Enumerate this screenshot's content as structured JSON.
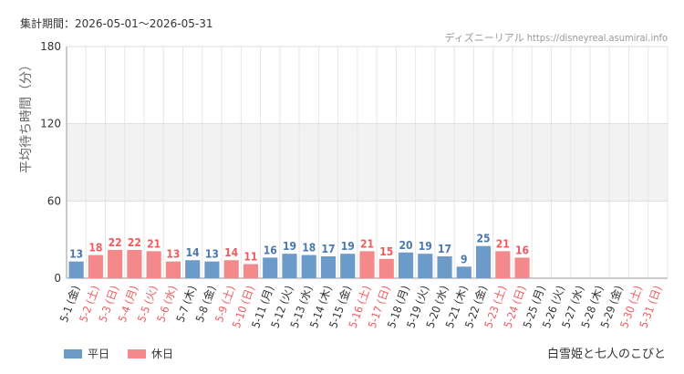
{
  "header": {
    "period": "集計期間：2026-05-01〜2026-05-31",
    "source": "ディズニーリアル https://disneyreal.asumirai.info"
  },
  "footer": {
    "attraction": "白雪姫と七人のこびと"
  },
  "colors": {
    "weekday": "#6d9bc9",
    "holiday": "#f4898c",
    "weekday_text": "#4a78ad",
    "holiday_text": "#ef5a5f",
    "band": "#f2f2f2",
    "grid": "#e6e6e6"
  },
  "chart_data": {
    "type": "bar",
    "ylabel": "平均待ち時間（分）",
    "ylim": [
      0,
      180
    ],
    "yticks": [
      0,
      60,
      120,
      180
    ],
    "shaded_band": [
      60,
      120
    ],
    "legend": [
      {
        "name": "平日",
        "key": "weekday"
      },
      {
        "name": "休日",
        "key": "holiday"
      }
    ],
    "categories": [
      "5-1 (金)",
      "5-2 (土)",
      "5-3 (日)",
      "5-4 (月)",
      "5-5 (火)",
      "5-6 (水)",
      "5-7 (木)",
      "5-8 (金)",
      "5-9 (土)",
      "5-10 (日)",
      "5-11 (月)",
      "5-12 (火)",
      "5-13 (水)",
      "5-14 (木)",
      "5-15 (金)",
      "5-16 (土)",
      "5-17 (日)",
      "5-18 (月)",
      "5-19 (火)",
      "5-20 (水)",
      "5-21 (木)",
      "5-22 (金)",
      "5-23 (土)",
      "5-24 (日)",
      "5-25 (月)",
      "5-26 (火)",
      "5-27 (水)",
      "5-28 (木)",
      "5-29 (金)",
      "5-30 (土)",
      "5-31 (日)"
    ],
    "values": [
      13,
      18,
      22,
      22,
      21,
      13,
      14,
      13,
      14,
      11,
      16,
      19,
      18,
      17,
      19,
      21,
      15,
      20,
      19,
      17,
      9,
      25,
      21,
      16,
      null,
      null,
      null,
      null,
      null,
      null,
      null
    ],
    "day_type": [
      "weekday",
      "holiday",
      "holiday",
      "holiday",
      "holiday",
      "holiday",
      "weekday",
      "weekday",
      "holiday",
      "holiday",
      "weekday",
      "weekday",
      "weekday",
      "weekday",
      "weekday",
      "holiday",
      "holiday",
      "weekday",
      "weekday",
      "weekday",
      "weekday",
      "weekday",
      "holiday",
      "holiday",
      "weekday",
      "weekday",
      "weekday",
      "weekday",
      "weekday",
      "holiday",
      "holiday"
    ]
  }
}
